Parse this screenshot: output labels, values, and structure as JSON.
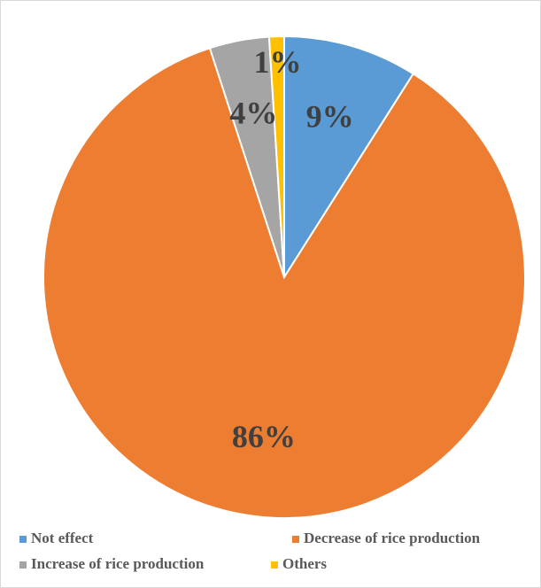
{
  "chart_data": {
    "type": "pie",
    "categories": [
      "Not effect",
      "Decrease of rice production",
      "Increase of rice production",
      "Others"
    ],
    "values": [
      9,
      86,
      4,
      1
    ],
    "value_labels": [
      "9%",
      "86%",
      "4%",
      "1%"
    ],
    "colors": [
      "#5b9bd5",
      "#ed7d31",
      "#a5a5a5",
      "#ffc000"
    ],
    "legend": "bottom"
  }
}
